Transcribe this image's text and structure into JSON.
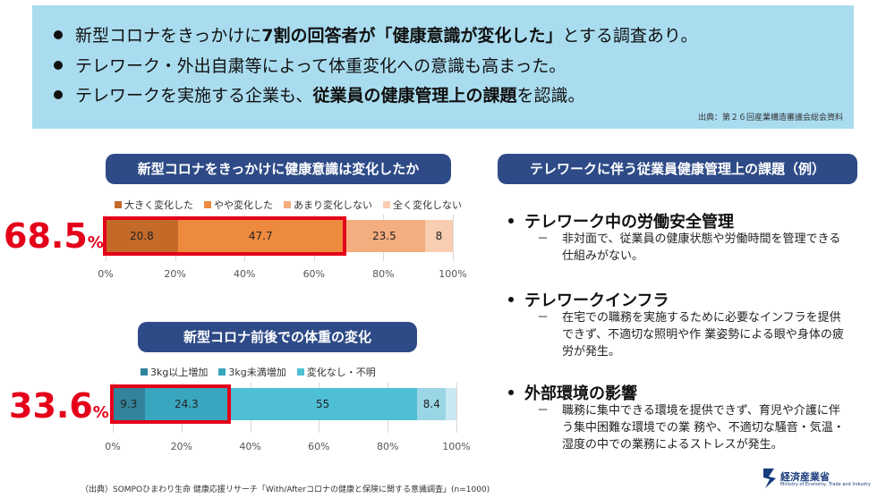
{
  "header": {
    "bullets": [
      {
        "pre": "新型コロナをきっかけに",
        "bold": "7割の回答者が「健康意識が変化した」",
        "post": "とする調査あり。"
      },
      {
        "pre": "テレワーク・外出自粛等によって体重変化への意識も高まった。",
        "bold": "",
        "post": ""
      },
      {
        "pre": "テレワークを実施する企業も、",
        "bold": "従業員の健康管理上の課題",
        "post": "を認識。"
      }
    ],
    "source": "出典：第２６回産業構造審議会総会資料"
  },
  "chart_data": [
    {
      "type": "bar",
      "orientation": "horizontal-stacked",
      "title": "新型コロナをきっかけに健康意識は変化したか",
      "series": [
        {
          "name": "大きく変化した",
          "values": [
            20.8
          ],
          "label": "20.8",
          "color": "#c46a28"
        },
        {
          "name": "やや変化した",
          "values": [
            47.7
          ],
          "label": "47.7",
          "color": "#ee8a3d"
        },
        {
          "name": "あまり変化しない",
          "values": [
            23.5
          ],
          "label": "23.5",
          "color": "#f4ad7e"
        },
        {
          "name": "全く変化しない",
          "values": [
            8
          ],
          "label": "8",
          "color": "#f8cdb0"
        }
      ],
      "xticks": [
        "0%",
        "20%",
        "40%",
        "60%",
        "80%",
        "100%"
      ],
      "xlim": [
        0,
        100
      ],
      "highlight": "68.5",
      "highlight_unit": "%",
      "legend": "top",
      "grid": true
    },
    {
      "type": "bar",
      "orientation": "horizontal-stacked",
      "title": "新型コロナ前後での体重の変化",
      "series": [
        {
          "name": "3kg以上増加",
          "values": [
            9.3
          ],
          "label": "9.3",
          "color": "#31849b"
        },
        {
          "name": "3kg未満増加",
          "values": [
            24.3
          ],
          "label": "24.3",
          "color": "#38a6bf"
        },
        {
          "name": "変化なし・不明",
          "values": [
            55
          ],
          "label": "55",
          "color": "#4fbfd6"
        },
        {
          "name": "",
          "values": [
            8.4
          ],
          "label": "8.4",
          "color": "#9ad6e6"
        },
        {
          "name": "",
          "values": [
            3.0
          ],
          "label": "",
          "color": "#c8e9f2"
        }
      ],
      "xticks": [
        "0%",
        "20%",
        "40%",
        "60%",
        "80%",
        "100%"
      ],
      "xlim": [
        0,
        100
      ],
      "highlight": "33.6",
      "highlight_unit": "%",
      "legend": "top",
      "grid": true
    }
  ],
  "right": {
    "title": "テレワークに伴う従業員健康管理上の課題（例）",
    "items": [
      {
        "head": "テレワーク中の労働安全管理",
        "desc": "非対面で、従業員の健康状態や労働時間を管理できる仕組みがない。"
      },
      {
        "head": "テレワークインフラ",
        "desc": "在宅での職務を実施するために必要なインフラを提供できず、不適切な照明や作 業姿勢による眼や身体の疲労が発生。"
      },
      {
        "head": "外部環境の影響",
        "desc": "職務に集中できる環境を提供できず、育児や介護に伴う集中困難な環境での業 務や、不適切な騒音・気温・湿度の中での業務によるストレスが発生。"
      }
    ],
    "dash": "－"
  },
  "footer": {
    "source": "（出典）SOMPOひまわり生命 健康応援リサーチ「With/Afterコロナの健康と保険に関する意識調査」(n=1000)",
    "logo_text": "経済産業省",
    "logo_sub": "Ministry of Economy, Trade and Industry"
  },
  "colors": {
    "topbox": "#a9dcef",
    "pill": "#2e4b87",
    "highlight": "#e5001a"
  }
}
